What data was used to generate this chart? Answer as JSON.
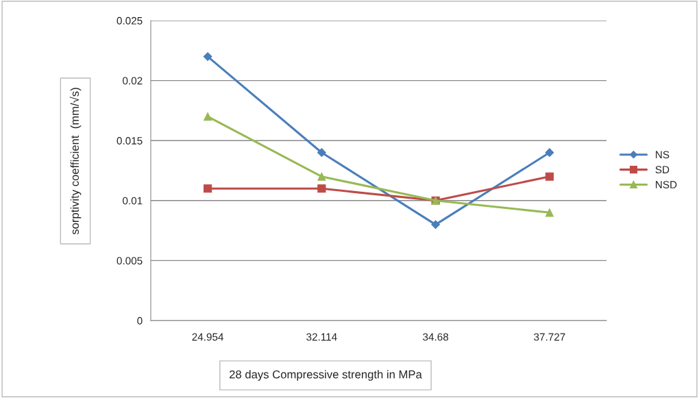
{
  "chart_data": {
    "type": "line",
    "xlabel": "28 days Compressive strength in MPa",
    "ylabel": "sorptivity coefficient  (mm/√s)",
    "categories": [
      "24.954",
      "32.114",
      "34.68",
      "37.727"
    ],
    "series": [
      {
        "name": "NS",
        "color": "#4a7ebb",
        "marker": "diamond",
        "values": [
          0.022,
          0.014,
          0.008,
          0.014
        ]
      },
      {
        "name": "SD",
        "color": "#be4b48",
        "marker": "square",
        "values": [
          0.011,
          0.011,
          0.01,
          0.012
        ]
      },
      {
        "name": "NSD",
        "color": "#98b954",
        "marker": "triangle",
        "values": [
          0.017,
          0.012,
          0.01,
          0.009
        ]
      }
    ],
    "ylim": [
      0,
      0.025
    ],
    "yticks": [
      {
        "value": 0,
        "label": "0"
      },
      0.005,
      0.01,
      0.015,
      0.02,
      0.025
    ],
    "grid": "y",
    "legend": "right",
    "line_style": "solid"
  }
}
